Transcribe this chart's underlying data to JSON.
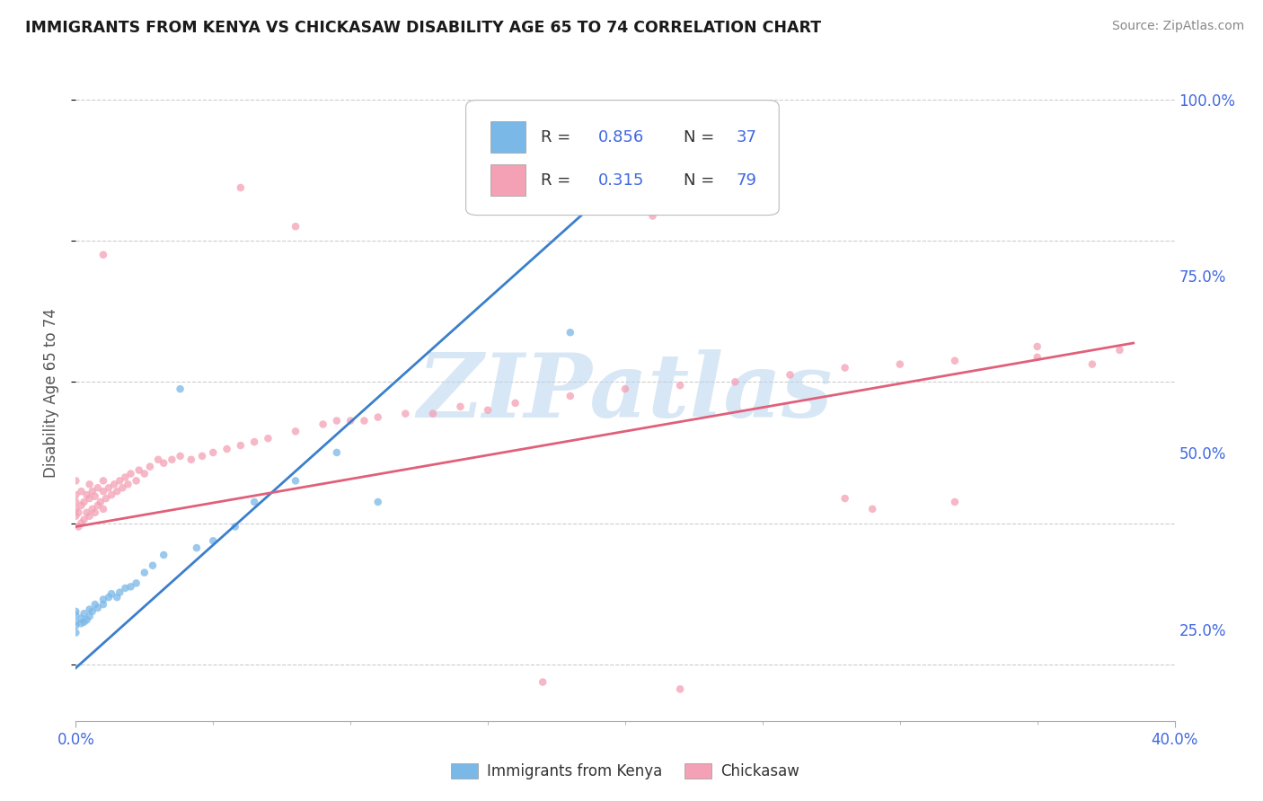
{
  "title": "IMMIGRANTS FROM KENYA VS CHICKASAW DISABILITY AGE 65 TO 74 CORRELATION CHART",
  "source": "Source: ZipAtlas.com",
  "ylabel": "Disability Age 65 to 74",
  "xlim": [
    0.0,
    0.4
  ],
  "ylim": [
    0.12,
    1.05
  ],
  "y_ticks_right": [
    0.25,
    0.5,
    0.75,
    1.0
  ],
  "y_tick_labels_right": [
    "25.0%",
    "50.0%",
    "75.0%",
    "100.0%"
  ],
  "blue_color": "#7ab8e8",
  "pink_color": "#f4a0b5",
  "blue_line_color": "#3a7fcc",
  "pink_line_color": "#e0607a",
  "blue_line_x": [
    0.0,
    0.224
  ],
  "blue_line_y": [
    0.195,
    0.975
  ],
  "pink_line_x": [
    0.0,
    0.385
  ],
  "pink_line_y": [
    0.395,
    0.655
  ],
  "watermark_color": "#b8d4ee",
  "watermark_text": "ZIPatlas",
  "background_color": "#ffffff",
  "grid_color": "#c8c8c8",
  "scatter_alpha": 0.75,
  "scatter_size": 38,
  "blue_N": 37,
  "pink_N": 79,
  "blue_R": "0.856",
  "pink_R": "0.315"
}
